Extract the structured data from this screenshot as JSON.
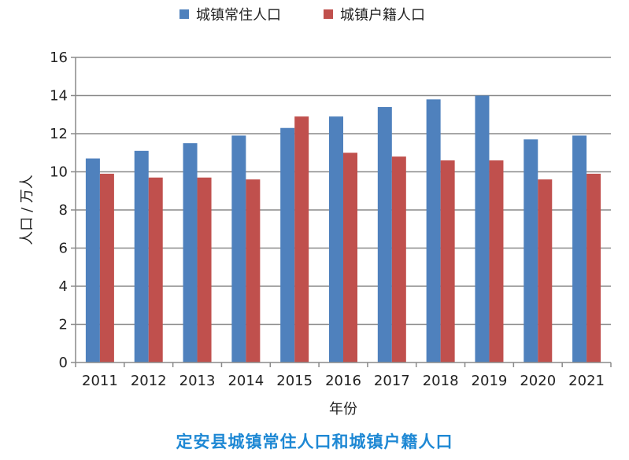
{
  "chart_data": {
    "type": "bar",
    "title": "",
    "categories": [
      "2011",
      "2012",
      "2013",
      "2014",
      "2015",
      "2016",
      "2017",
      "2018",
      "2019",
      "2020",
      "2021"
    ],
    "series": [
      {
        "name": "城镇常住人口",
        "color": "#4F81BD",
        "values": [
          10.7,
          11.1,
          11.5,
          11.9,
          12.3,
          12.9,
          13.4,
          13.8,
          14.0,
          11.7,
          11.9
        ]
      },
      {
        "name": "城镇户籍人口",
        "color": "#C0504D",
        "values": [
          9.9,
          9.7,
          9.7,
          9.6,
          12.9,
          11.0,
          10.8,
          10.6,
          10.6,
          9.6,
          9.9
        ]
      }
    ],
    "xlabel": "年份",
    "ylabel": "人口 / 万人",
    "ylim": [
      0,
      16
    ],
    "yticks": [
      "0",
      "2",
      "4",
      "6",
      "8",
      "10",
      "12",
      "14",
      "16"
    ],
    "grid": true,
    "legend_position": "top-center"
  },
  "caption": {
    "text": "定安县城镇常住人口和城镇户籍人口",
    "color": "#1E88D4"
  }
}
